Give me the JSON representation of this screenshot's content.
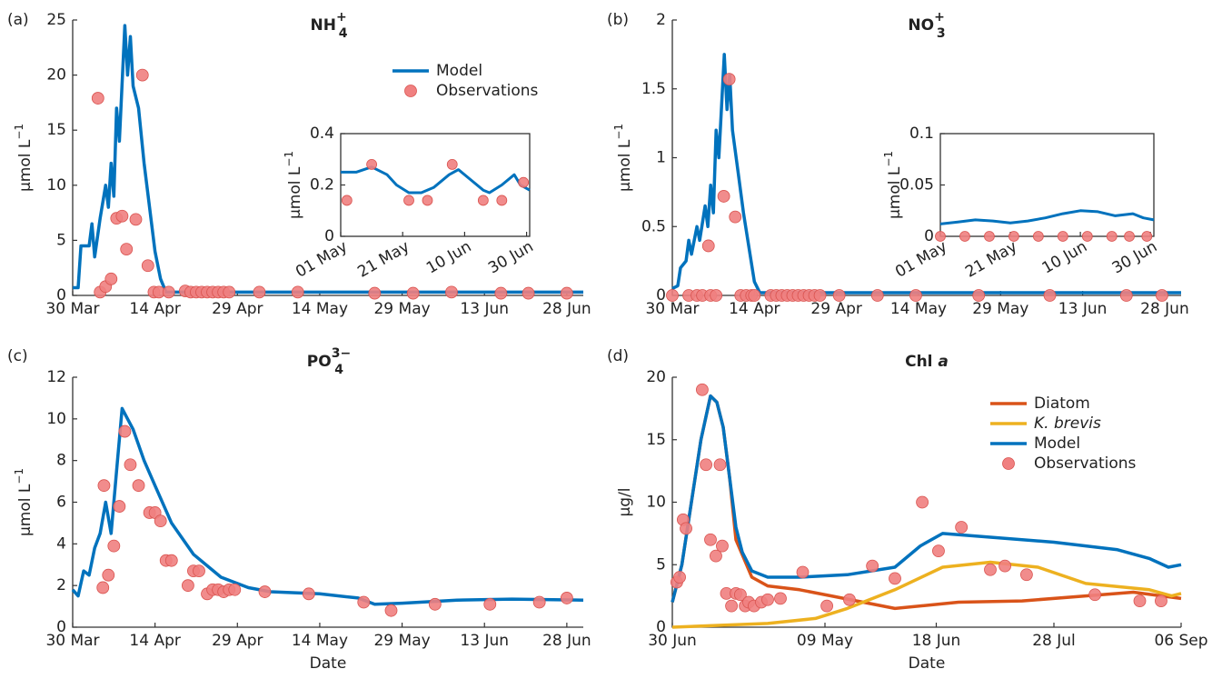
{
  "chart_data": [
    {
      "type": "line",
      "label": "(a)",
      "title": "NH",
      "title_sub": "4",
      "title_sup": "+",
      "ylabel": "μmol L",
      "ylabel_sup": "−1",
      "legend": "upper right",
      "grid": false,
      "xlim": [
        0,
        93
      ],
      "ylim": [
        0,
        25
      ],
      "xticks": [
        {
          "value": 0,
          "label": "30 Mar"
        },
        {
          "value": 15,
          "label": "14 Apr"
        },
        {
          "value": 30,
          "label": "29 Apr"
        },
        {
          "value": 45,
          "label": "14 May"
        },
        {
          "value": 60,
          "label": "29 May"
        },
        {
          "value": 75,
          "label": "13 Jun"
        },
        {
          "value": 90,
          "label": "28 Jun"
        }
      ],
      "yticks": [
        0,
        5,
        10,
        15,
        20,
        25
      ],
      "series": [
        {
          "name": "Model",
          "style": "line",
          "color": "#0072bd",
          "x": [
            0,
            1,
            1.5,
            3,
            3.5,
            4,
            5,
            6,
            6.5,
            7,
            7.5,
            8,
            8.5,
            9.5,
            10,
            10.5,
            11,
            12,
            13,
            14,
            15,
            16,
            17,
            93
          ],
          "values": [
            0.7,
            0.7,
            4.5,
            4.5,
            6.5,
            3.5,
            7,
            10,
            8,
            12,
            9,
            17,
            14,
            24.5,
            20,
            23.5,
            19,
            17,
            12,
            8,
            4,
            1.5,
            0.3,
            0.3
          ]
        },
        {
          "name": "Observations",
          "style": "marker",
          "color": "#f08080",
          "x": [
            4.6,
            5,
            6,
            7,
            8,
            9,
            9.8,
            11.5,
            12.7,
            13.7,
            14.8,
            15.7,
            17.5,
            20.5,
            21.5,
            22.5,
            23.5,
            24.5,
            25.5,
            26.5,
            27.5,
            28.5,
            34,
            41,
            55,
            62,
            69,
            78,
            83,
            90
          ],
          "values": [
            17.9,
            0.3,
            0.8,
            1.5,
            7,
            7.2,
            4.2,
            6.9,
            20,
            2.7,
            0.3,
            0.3,
            0.3,
            0.4,
            0.3,
            0.3,
            0.3,
            0.3,
            0.3,
            0.3,
            0.3,
            0.3,
            0.3,
            0.3,
            0.2,
            0.2,
            0.3,
            0.2,
            0.2,
            0.2
          ]
        }
      ],
      "inset": {
        "ylabel": "μmol L",
        "ylabel_sup": "−1",
        "xlim": [
          0,
          61
        ],
        "ylim": [
          0,
          0.4
        ],
        "xticks": [
          {
            "value": 0,
            "label": "01 May"
          },
          {
            "value": 20,
            "label": "21 May"
          },
          {
            "value": 40,
            "label": "10 Jun"
          },
          {
            "value": 60,
            "label": "30 Jun"
          }
        ],
        "yticks": [
          0,
          0.2,
          0.4
        ],
        "series": [
          {
            "style": "line",
            "color": "#0072bd",
            "x": [
              0,
              5,
              10,
              15,
              18,
              22,
              26,
              30,
              35,
              38,
              42,
              46,
              48,
              52,
              56,
              58,
              61
            ],
            "values": [
              0.25,
              0.25,
              0.27,
              0.24,
              0.2,
              0.17,
              0.17,
              0.19,
              0.24,
              0.26,
              0.22,
              0.18,
              0.17,
              0.2,
              0.24,
              0.2,
              0.18
            ]
          },
          {
            "style": "marker",
            "color": "#f08080",
            "x": [
              2,
              10,
              22,
              28,
              36,
              46,
              52,
              59
            ],
            "values": [
              0.14,
              0.28,
              0.14,
              0.14,
              0.28,
              0.14,
              0.14,
              0.21
            ]
          }
        ]
      }
    },
    {
      "type": "line",
      "label": "(b)",
      "title": "NO",
      "title_sub": "3",
      "title_sup": "+",
      "ylabel": "μmol L",
      "ylabel_sup": "−1",
      "grid": false,
      "xlim": [
        0,
        93
      ],
      "ylim": [
        0,
        2
      ],
      "xticks": [
        {
          "value": 0,
          "label": "30 Mar"
        },
        {
          "value": 15,
          "label": "14 Apr"
        },
        {
          "value": 30,
          "label": "29 Apr"
        },
        {
          "value": 45,
          "label": "14 May"
        },
        {
          "value": 60,
          "label": "29 May"
        },
        {
          "value": 75,
          "label": "13 Jun"
        },
        {
          "value": 90,
          "label": "28 Jun"
        }
      ],
      "yticks": [
        0,
        0.5,
        1,
        1.5,
        2
      ],
      "series": [
        {
          "style": "line",
          "color": "#0072bd",
          "x": [
            0,
            1,
            1.5,
            2.5,
            3,
            3.5,
            4.5,
            5,
            6,
            6.5,
            7,
            7.5,
            8,
            8.5,
            9.5,
            10,
            10.5,
            11,
            12,
            13,
            14,
            15,
            16,
            93
          ],
          "values": [
            0.05,
            0.07,
            0.2,
            0.25,
            0.4,
            0.3,
            0.5,
            0.4,
            0.65,
            0.5,
            0.8,
            0.6,
            1.2,
            1.0,
            1.75,
            1.35,
            1.6,
            1.2,
            0.9,
            0.6,
            0.35,
            0.1,
            0.02,
            0.02
          ]
        },
        {
          "style": "marker",
          "color": "#f08080",
          "x": [
            0,
            3,
            4.5,
            5.5,
            6.6,
            7,
            8,
            9.4,
            10.4,
            11.5,
            12.5,
            13.5,
            14.5,
            15,
            18,
            19,
            20,
            21,
            22,
            23,
            24,
            25,
            26,
            27,
            30.5,
            37.5,
            44.5,
            56,
            69,
            83,
            89.5
          ],
          "values": [
            0,
            0,
            0,
            0,
            0.36,
            0,
            0,
            0.72,
            1.57,
            0.57,
            0,
            0,
            0,
            0,
            0,
            0,
            0,
            0,
            0,
            0,
            0,
            0,
            0,
            0,
            0,
            0,
            0,
            0,
            0,
            0,
            0
          ]
        }
      ],
      "inset": {
        "ylabel": "μmol L",
        "ylabel_sup": "−1",
        "xlim": [
          0,
          61
        ],
        "ylim": [
          0,
          0.1
        ],
        "xticks": [
          {
            "value": 0,
            "label": "01 May"
          },
          {
            "value": 20,
            "label": "21 May"
          },
          {
            "value": 40,
            "label": "10 Jun"
          },
          {
            "value": 60,
            "label": "30 Jun"
          }
        ],
        "yticks": [
          0,
          0.05,
          0.1
        ],
        "series": [
          {
            "style": "line",
            "color": "#0072bd",
            "x": [
              0,
              5,
              10,
              15,
              20,
              25,
              30,
              35,
              40,
              45,
              50,
              55,
              58,
              61
            ],
            "values": [
              0.012,
              0.014,
              0.016,
              0.015,
              0.013,
              0.015,
              0.018,
              0.022,
              0.025,
              0.024,
              0.02,
              0.022,
              0.018,
              0.016
            ]
          },
          {
            "style": "marker",
            "color": "#f08080",
            "x": [
              0,
              7,
              14,
              21,
              28,
              35,
              42,
              49,
              54,
              59
            ],
            "values": [
              0,
              0,
              0,
              0,
              0,
              0,
              0,
              0,
              0,
              0
            ]
          }
        ]
      }
    },
    {
      "type": "line",
      "label": "(c)",
      "title": "PO",
      "title_sub": "4",
      "title_sup": "3−",
      "ylabel": "μmol L",
      "ylabel_sup": "−1",
      "xlabel": "Date",
      "grid": false,
      "xlim": [
        0,
        93
      ],
      "ylim": [
        0,
        12
      ],
      "xticks": [
        {
          "value": 0,
          "label": "30 Mar"
        },
        {
          "value": 15,
          "label": "14 Apr"
        },
        {
          "value": 30,
          "label": "29 Apr"
        },
        {
          "value": 45,
          "label": "14 May"
        },
        {
          "value": 60,
          "label": "29 May"
        },
        {
          "value": 75,
          "label": "13 Jun"
        },
        {
          "value": 90,
          "label": "28 Jun"
        }
      ],
      "yticks": [
        0,
        2,
        4,
        6,
        8,
        10,
        12
      ],
      "series": [
        {
          "style": "line",
          "color": "#0072bd",
          "x": [
            0,
            1,
            2,
            3,
            4,
            5,
            6,
            7,
            8,
            9,
            10,
            11,
            13,
            15,
            18,
            22,
            27,
            32,
            36,
            45,
            52,
            55,
            60,
            70,
            80,
            93
          ],
          "values": [
            1.8,
            1.5,
            2.7,
            2.5,
            3.8,
            4.5,
            6,
            4.5,
            7.5,
            10.5,
            10,
            9.5,
            8,
            6.8,
            5,
            3.5,
            2.4,
            1.9,
            1.7,
            1.6,
            1.4,
            1.1,
            1.15,
            1.3,
            1.35,
            1.3
          ]
        },
        {
          "style": "marker",
          "color": "#f08080",
          "x": [
            5.5,
            5.7,
            6.5,
            7.5,
            8.5,
            9.5,
            10.5,
            12,
            14,
            15,
            16,
            17,
            18,
            21,
            22,
            23,
            24.5,
            25.5,
            26.5,
            27.5,
            28.5,
            29.5,
            35,
            43,
            53,
            58,
            66,
            76,
            85,
            90
          ],
          "values": [
            1.9,
            6.8,
            2.5,
            3.9,
            5.8,
            9.4,
            7.8,
            6.8,
            5.5,
            5.5,
            5.1,
            3.2,
            3.2,
            2.0,
            2.7,
            2.7,
            1.6,
            1.8,
            1.8,
            1.7,
            1.8,
            1.8,
            1.7,
            1.6,
            1.2,
            0.8,
            1.1,
            1.1,
            1.2,
            1.4
          ]
        }
      ]
    },
    {
      "type": "line",
      "label": "(d)",
      "title": "Chl",
      "title_italic": "a",
      "ylabel": "μg/l",
      "xlabel": "Date",
      "legend": "upper right",
      "grid": false,
      "xlim": [
        0,
        160
      ],
      "ylim": [
        0,
        20
      ],
      "xticks": [
        {
          "value": 0,
          "label": "30 Jun"
        },
        {
          "value": 48,
          "label": "09 May"
        },
        {
          "value": 83,
          "label": "18 Jun"
        },
        {
          "value": 120,
          "label": "28 Jul"
        },
        {
          "value": 160,
          "label": "06 Sep"
        }
      ],
      "yticks": [
        0,
        5,
        10,
        15,
        20
      ],
      "series": [
        {
          "name": "Diatom",
          "style": "line",
          "color": "#d95319",
          "x": [
            0,
            3,
            6,
            9,
            12,
            14,
            16,
            18,
            20,
            25,
            30,
            40,
            50,
            60,
            70,
            90,
            110,
            130,
            145,
            160
          ],
          "values": [
            2,
            5,
            10,
            15,
            18.5,
            18,
            16,
            12,
            7,
            4,
            3.3,
            3,
            2.5,
            2,
            1.5,
            2,
            2.1,
            2.5,
            2.8,
            2.3
          ]
        },
        {
          "name": "K. brevis",
          "italic": true,
          "style": "line",
          "color": "#edb120",
          "x": [
            0,
            30,
            45,
            55,
            70,
            85,
            100,
            115,
            130,
            150,
            157,
            160
          ],
          "values": [
            0,
            0.3,
            0.7,
            1.5,
            3,
            4.8,
            5.2,
            4.8,
            3.5,
            3,
            2.5,
            2.7
          ]
        },
        {
          "name": "Model",
          "style": "line",
          "color": "#0072bd",
          "x": [
            0,
            3,
            6,
            9,
            12,
            14,
            16,
            18,
            20,
            22,
            25,
            30,
            40,
            55,
            70,
            78,
            85,
            100,
            120,
            140,
            150,
            156,
            160
          ],
          "values": [
            2,
            5,
            10,
            15,
            18.5,
            18,
            16,
            12,
            8,
            6,
            4.5,
            4,
            4,
            4.2,
            4.8,
            6.5,
            7.5,
            7.2,
            6.8,
            6.2,
            5.5,
            4.8,
            5
          ]
        },
        {
          "name": "Observations",
          "style": "marker",
          "color": "#f08080",
          "x": [
            1.4,
            2.3,
            3.4,
            4.3,
            9.4,
            10.6,
            12,
            13.7,
            15,
            15.7,
            17,
            18.6,
            20,
            21.4,
            22.9,
            24,
            25.7,
            28,
            30,
            34,
            41,
            48.6,
            55.7,
            62.9,
            70,
            78.6,
            83.7,
            90.9,
            100,
            104.6,
            111.4,
            132.9,
            147,
            153.7
          ],
          "values": [
            3.6,
            4.0,
            8.6,
            7.9,
            19,
            13,
            7,
            5.7,
            13,
            6.5,
            2.7,
            1.7,
            2.7,
            2.6,
            1.7,
            2,
            1.7,
            2,
            2.2,
            2.3,
            4.4,
            1.7,
            2.2,
            4.9,
            3.9,
            10,
            6.1,
            8,
            4.6,
            4.9,
            4.2,
            2.6,
            2.1,
            2.1
          ]
        }
      ]
    }
  ]
}
